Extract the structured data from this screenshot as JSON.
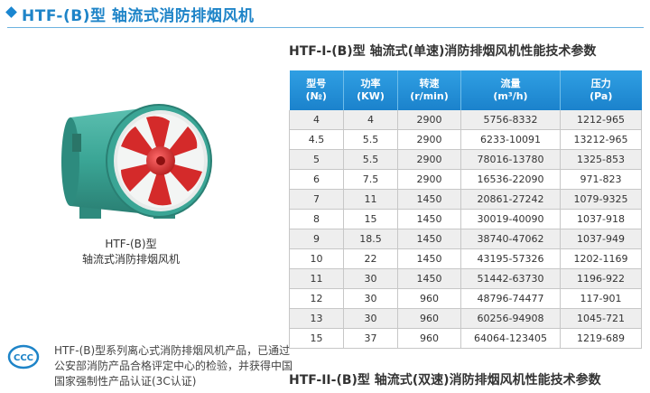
{
  "header": {
    "title": "HTF-(B)型 轴流式消防排烟风机"
  },
  "product": {
    "caption_line1": "HTF-(B)型",
    "caption_line2": "轴流式消防排烟风机"
  },
  "description": {
    "line1": "HTF-(B)型系列离心式消防排烟风机产品，已通过",
    "line2": "公安部消防产品合格评定中心的检验，并获得中国",
    "line3": "国家强制性产品认证(3C认证)"
  },
  "table_single": {
    "title": "HTF-I-(B)型 轴流式(单速)消防排烟风机性能技术参数",
    "headers": [
      {
        "line1": "型号",
        "line2": "(№)"
      },
      {
        "line1": "功率",
        "line2": "(KW)"
      },
      {
        "line1": "转速",
        "line2": "(r/min)"
      },
      {
        "line1": "流量",
        "line2": "(m³/h)"
      },
      {
        "line1": "压力",
        "line2": "(Pa)"
      }
    ],
    "rows": [
      [
        "4",
        "4",
        "2900",
        "5756-8332",
        "1212-965"
      ],
      [
        "4.5",
        "5.5",
        "2900",
        "6233-10091",
        "13212-965"
      ],
      [
        "5",
        "5.5",
        "2900",
        "78016-13780",
        "1325-853"
      ],
      [
        "6",
        "7.5",
        "2900",
        "16536-22090",
        "971-823"
      ],
      [
        "7",
        "11",
        "1450",
        "20861-27242",
        "1079-9325"
      ],
      [
        "8",
        "15",
        "1450",
        "30019-40090",
        "1037-918"
      ],
      [
        "9",
        "18.5",
        "1450",
        "38740-47062",
        "1037-949"
      ],
      [
        "10",
        "22",
        "1450",
        "43195-57326",
        "1202-1169"
      ],
      [
        "11",
        "30",
        "1450",
        "51442-63730",
        "1196-922"
      ],
      [
        "12",
        "30",
        "960",
        "48796-74477",
        "117-901"
      ],
      [
        "13",
        "30",
        "960",
        "60256-94908",
        "1045-721"
      ],
      [
        "15",
        "37",
        "960",
        "64064-123405",
        "1219-689"
      ]
    ]
  },
  "table_double": {
    "title": "HTF-II-(B)型 轴流式(双速)消防排烟风机性能技术参数"
  },
  "colors": {
    "accent": "#1e84c8",
    "header_bg": "#1b82cc",
    "fan_body": "#3aa595",
    "fan_blade": "#d42a2a"
  },
  "icons": {
    "bullet": "diamond-icon",
    "certification": "ccc-logo"
  }
}
